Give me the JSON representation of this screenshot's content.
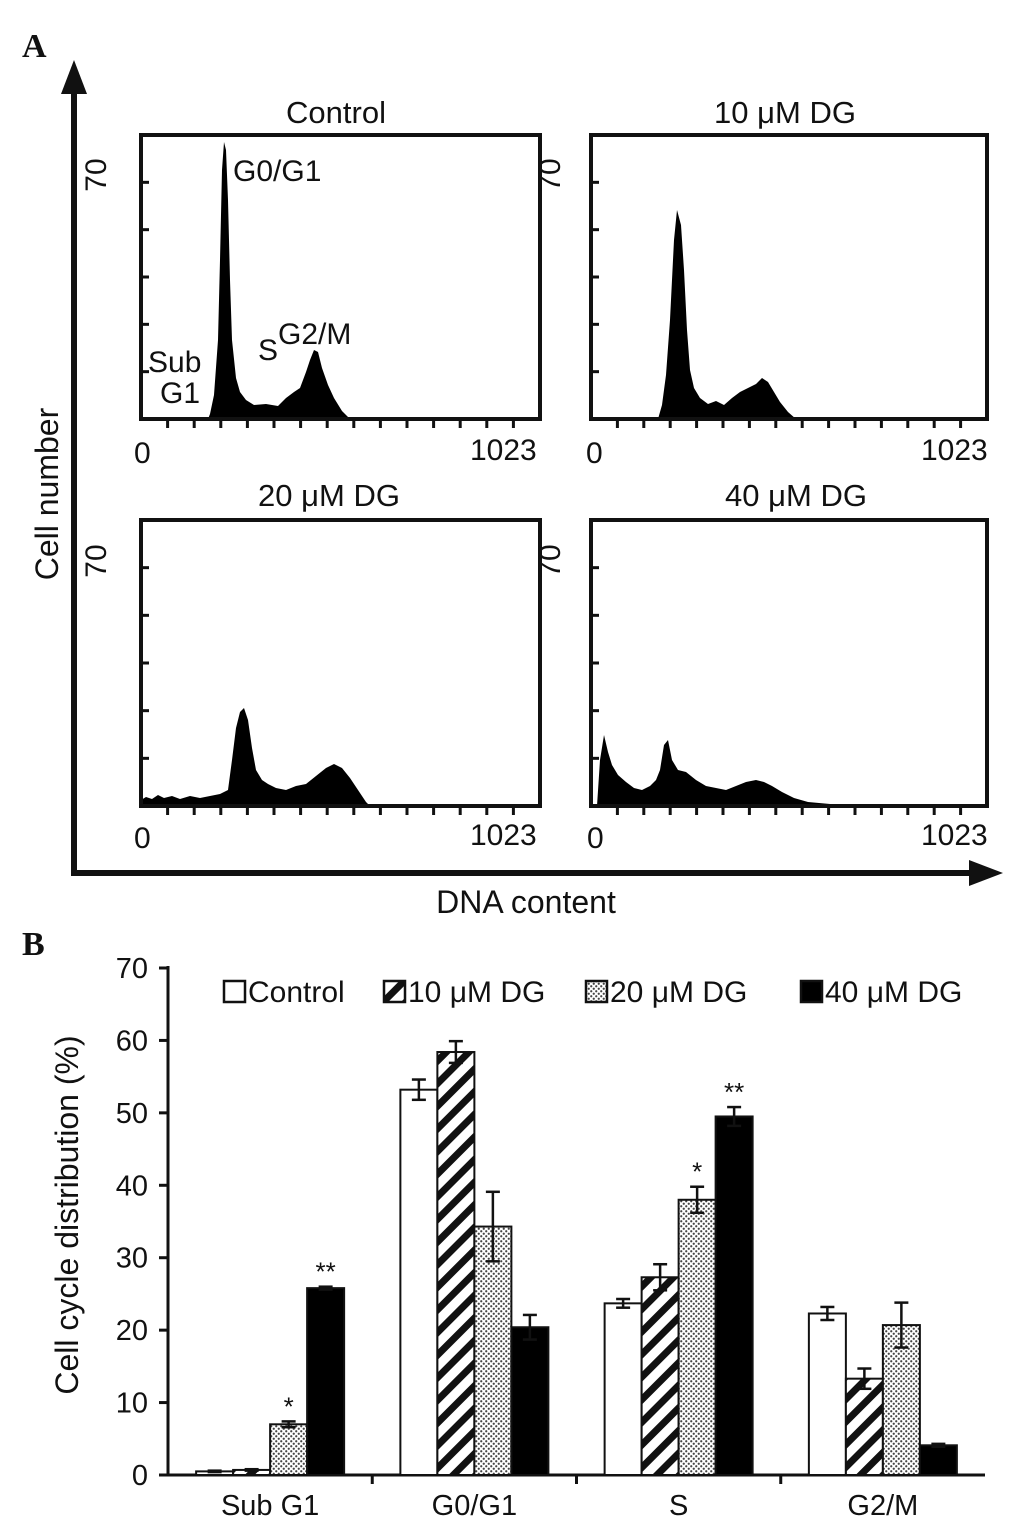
{
  "panel_labels": {
    "a": "A",
    "b": "B"
  },
  "panel_a": {
    "y_axis_title": "Cell number",
    "x_axis_title": "DNA content",
    "y_max_label": "70",
    "x_min_label": "0",
    "x_max_label": "1023",
    "histograms": [
      {
        "title": "Control"
      },
      {
        "title": "10 μM DG"
      },
      {
        "title": "20 μM DG"
      },
      {
        "title": "40 μM DG"
      }
    ],
    "phase_labels": {
      "g0g1": "G0/G1",
      "g2m": "G2/M",
      "s": "S",
      "sub": "Sub",
      "g1": "G1"
    }
  },
  "chart_data": {
    "type": "bar",
    "ylabel": "Cell cycle distribution (%)",
    "ylim": [
      0,
      70
    ],
    "yticks": [
      "0",
      "10",
      "20",
      "30",
      "40",
      "50",
      "60",
      "70"
    ],
    "categories": [
      "Sub G1",
      "G0/G1",
      "S",
      "G2/M"
    ],
    "legend_position": "top",
    "series": [
      {
        "name": "Control",
        "pattern": "open",
        "values": [
          0.5,
          53.2,
          23.7,
          22.3
        ],
        "errors": [
          0.1,
          1.4,
          0.6,
          0.9
        ]
      },
      {
        "name": "10 μM DG",
        "pattern": "hatched",
        "values": [
          0.7,
          58.4,
          27.3,
          13.3
        ],
        "errors": [
          0.1,
          1.5,
          1.8,
          1.4
        ]
      },
      {
        "name": "20 μM DG",
        "pattern": "dotted",
        "values": [
          7.0,
          34.3,
          38.0,
          20.7
        ],
        "errors": [
          0.4,
          4.8,
          1.8,
          3.1
        ]
      },
      {
        "name": "40 μM DG",
        "pattern": "solid",
        "values": [
          25.8,
          20.4,
          49.5,
          4.1
        ],
        "errors": [
          0.2,
          1.7,
          1.3,
          0.2
        ]
      }
    ],
    "annotations": [
      {
        "category": "Sub G1",
        "series": "20 μM DG",
        "text": "*"
      },
      {
        "category": "Sub G1",
        "series": "40 μM DG",
        "text": "**"
      },
      {
        "category": "S",
        "series": "20 μM DG",
        "text": "*"
      },
      {
        "category": "S",
        "series": "40 μM DG",
        "text": "**"
      }
    ]
  }
}
